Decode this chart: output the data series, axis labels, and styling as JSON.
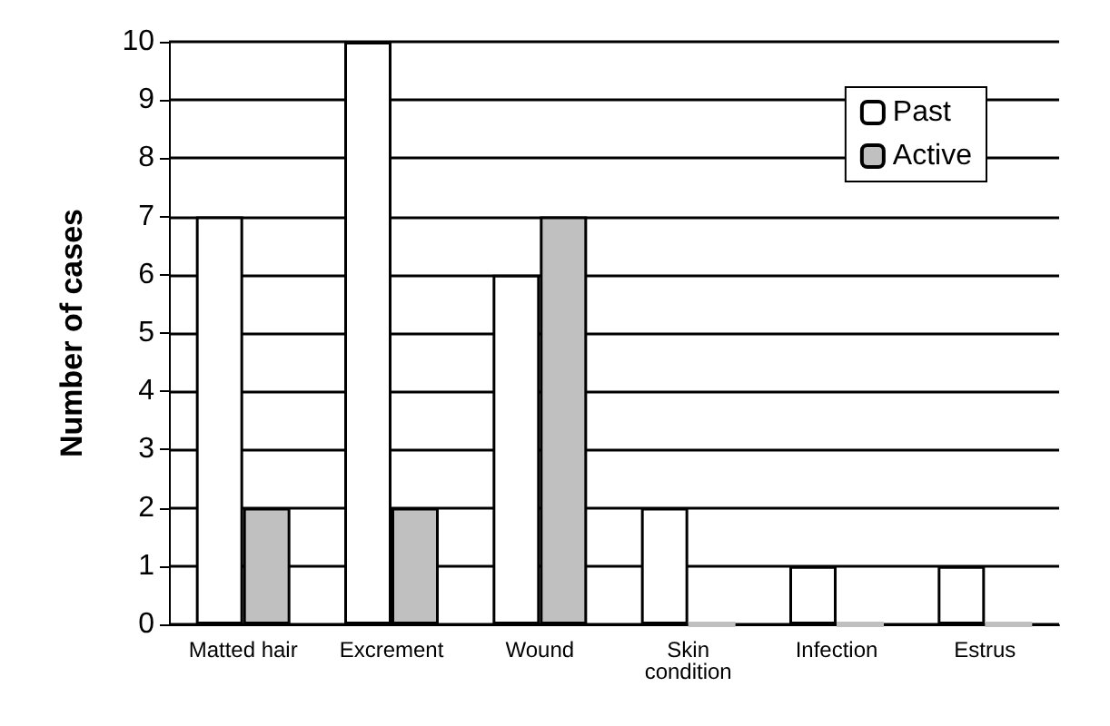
{
  "chart_data": {
    "type": "bar",
    "ylabel": "Number of cases",
    "categories": [
      "Matted hair",
      "Excrement",
      "Wound",
      "Skin\ncondition",
      "Infection",
      "Estrus"
    ],
    "series": [
      {
        "name": "Past",
        "color": "#ffffff",
        "values": [
          7,
          10,
          6,
          2,
          1,
          1
        ]
      },
      {
        "name": "Active",
        "color": "#c0c0c0",
        "values": [
          2,
          2,
          7,
          0,
          0,
          0
        ]
      }
    ],
    "ylim": [
      0,
      10
    ],
    "yticks": [
      0,
      1,
      2,
      3,
      4,
      5,
      6,
      7,
      8,
      9,
      10
    ],
    "grid": "y",
    "legend": "top right"
  }
}
